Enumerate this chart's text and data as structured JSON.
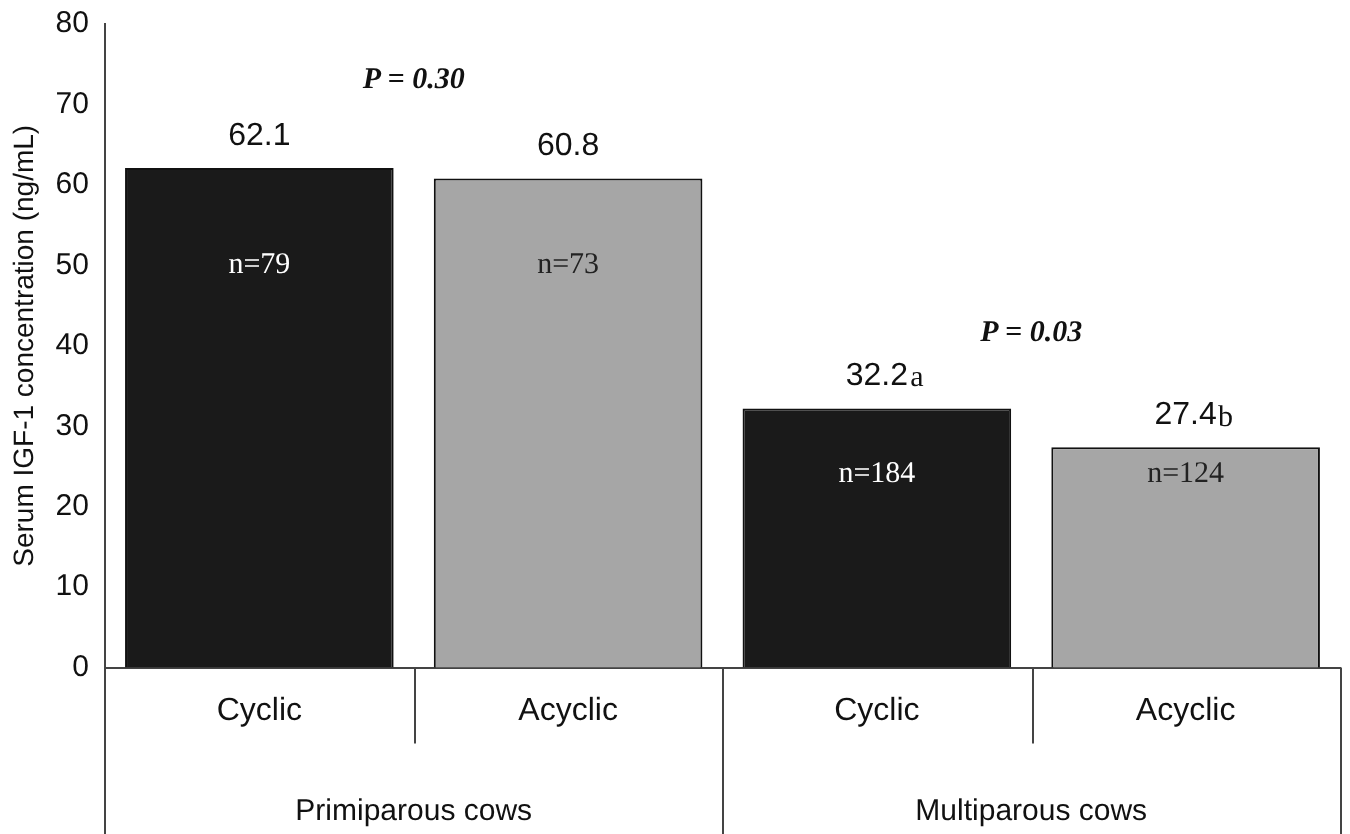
{
  "chart_data": {
    "type": "bar",
    "ylabel": "Serum IGF-1 concentration (ng/mL)",
    "categories": [
      "Cyclic",
      "Acyclic",
      "Cyclic",
      "Acyclic"
    ],
    "values": [
      62.1,
      60.8,
      32.2,
      27.4
    ],
    "colors": [
      "#1a1a1a",
      "#a6a6a6",
      "#1a1a1a",
      "#a6a6a6"
    ],
    "ylim": [
      0,
      80
    ],
    "yticks": [
      0,
      10,
      20,
      30,
      40,
      50,
      60,
      70,
      80
    ],
    "grid": false,
    "data_labels": true,
    "annotations": [
      "P = 0.30",
      "P = 0.03",
      "a",
      "b",
      "n=79",
      "n=73",
      "n=184",
      "n=124",
      "Primiparous cows",
      "Multiparous cows"
    ]
  }
}
